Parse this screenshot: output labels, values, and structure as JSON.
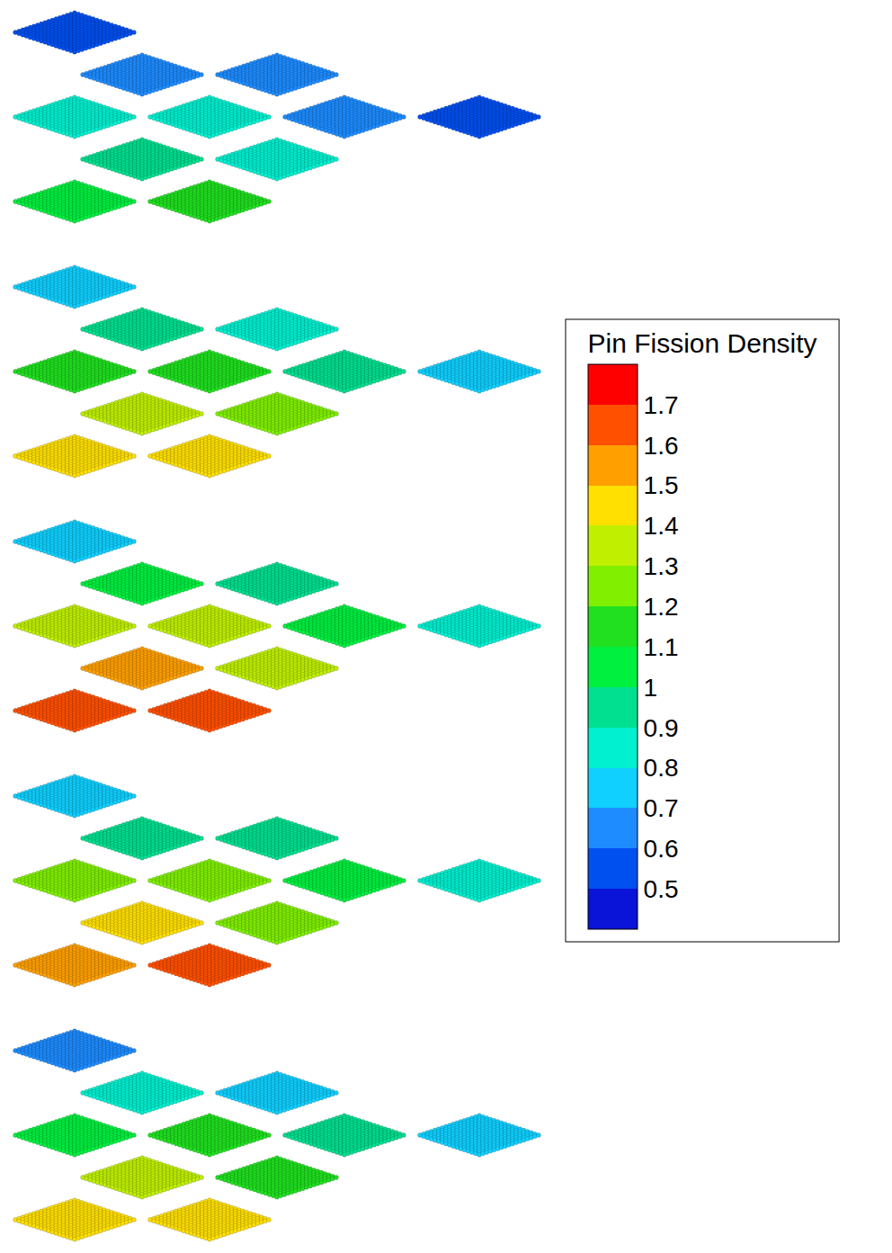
{
  "chart_data": {
    "type": "pin_map",
    "colorbar": {
      "title": "Pin Fission Density",
      "range": [
        0.4,
        1.8
      ],
      "ticks": [
        0.5,
        0.6,
        0.7,
        0.8,
        0.9,
        1,
        1.1,
        1.2,
        1.3,
        1.4,
        1.5,
        1.6,
        1.7
      ],
      "colors": [
        "#0a14d8",
        "#0050f0",
        "#1e8cff",
        "#10d0ff",
        "#00f0d0",
        "#00e090",
        "#00f040",
        "#20e020",
        "#80f000",
        "#c0f000",
        "#ffe000",
        "#ffa000",
        "#ff5000",
        "#ff0000"
      ]
    },
    "slices": [
      [
        0.5,
        0.6,
        0.6,
        0.8,
        0.8,
        0.65,
        0.5,
        0.95,
        0.85,
        1.05,
        1.1
      ],
      [
        0.7,
        0.9,
        0.85,
        1.15,
        1.15,
        0.9,
        0.75,
        1.3,
        1.2,
        1.4,
        1.45
      ],
      [
        0.75,
        1.0,
        0.95,
        1.3,
        1.3,
        1.05,
        0.8,
        1.5,
        1.3,
        1.6,
        1.68
      ],
      [
        0.75,
        0.95,
        0.9,
        1.25,
        1.25,
        1.0,
        0.8,
        1.45,
        1.25,
        1.55,
        1.62
      ],
      [
        0.65,
        0.8,
        0.78,
        1.05,
        1.1,
        0.9,
        0.7,
        1.3,
        1.15,
        1.4,
        1.45
      ]
    ]
  }
}
